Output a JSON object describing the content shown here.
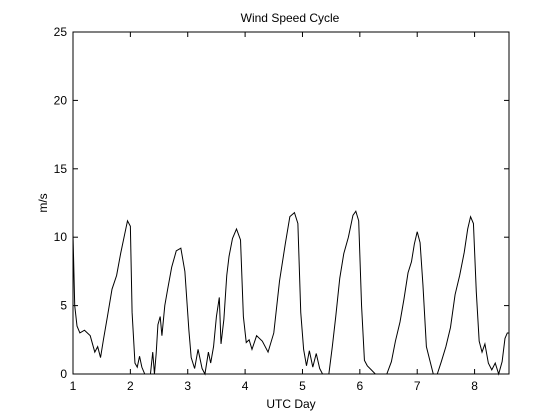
{
  "chart_data": {
    "type": "line",
    "title": "Wind Speed Cycle",
    "xlabel": "UTC Day",
    "ylabel": "m/s",
    "xlim": [
      1,
      8.6
    ],
    "ylim": [
      0,
      25
    ],
    "xticks": [
      1,
      2,
      3,
      4,
      5,
      6,
      7,
      8
    ],
    "yticks": [
      0,
      5,
      10,
      15,
      20,
      25
    ],
    "grid": false,
    "series": [
      {
        "color": "#000000",
        "x": [
          1.0,
          1.03,
          1.07,
          1.12,
          1.2,
          1.3,
          1.38,
          1.43,
          1.48,
          1.53,
          1.6,
          1.68,
          1.76,
          1.83,
          1.9,
          1.95,
          2.0,
          2.03,
          2.08,
          2.12,
          2.16,
          2.2,
          2.25,
          2.3,
          2.35,
          2.39,
          2.42,
          2.45,
          2.48,
          2.52,
          2.55,
          2.6,
          2.65,
          2.72,
          2.8,
          2.88,
          2.95,
          3.02,
          3.06,
          3.12,
          3.18,
          3.25,
          3.3,
          3.36,
          3.4,
          3.45,
          3.5,
          3.55,
          3.58,
          3.63,
          3.68,
          3.72,
          3.78,
          3.85,
          3.92,
          3.97,
          4.02,
          4.07,
          4.12,
          4.2,
          4.3,
          4.4,
          4.5,
          4.6,
          4.7,
          4.78,
          4.86,
          4.92,
          4.97,
          5.02,
          5.07,
          5.12,
          5.18,
          5.24,
          5.3,
          5.35,
          5.4,
          5.46,
          5.52,
          5.58,
          5.65,
          5.72,
          5.8,
          5.88,
          5.93,
          5.98,
          6.03,
          6.08,
          6.13,
          6.2,
          6.27,
          6.33,
          6.4,
          6.47,
          6.55,
          6.62,
          6.7,
          6.77,
          6.84,
          6.9,
          6.95,
          7.0,
          7.05,
          7.1,
          7.16,
          7.22,
          7.28,
          7.35,
          7.42,
          7.5,
          7.58,
          7.66,
          7.74,
          7.82,
          7.88,
          7.93,
          7.98,
          8.03,
          8.08,
          8.13,
          8.18,
          8.24,
          8.3,
          8.36,
          8.42,
          8.48,
          8.53,
          8.57,
          8.6
        ],
        "y": [
          10.2,
          5.0,
          3.5,
          3.0,
          3.2,
          2.8,
          1.6,
          2.0,
          1.2,
          2.5,
          4.2,
          6.2,
          7.2,
          8.8,
          10.2,
          11.2,
          10.8,
          4.5,
          0.8,
          0.5,
          1.3,
          0.5,
          0.0,
          0.0,
          0.0,
          1.6,
          0.0,
          1.5,
          3.6,
          4.2,
          2.8,
          5.0,
          6.2,
          7.8,
          9.0,
          9.2,
          7.5,
          3.2,
          1.2,
          0.4,
          1.8,
          0.4,
          0.0,
          1.6,
          0.8,
          2.0,
          4.2,
          5.6,
          2.2,
          4.0,
          7.2,
          8.6,
          9.9,
          10.6,
          9.8,
          4.2,
          2.3,
          2.5,
          1.8,
          2.8,
          2.4,
          1.6,
          3.0,
          6.8,
          9.5,
          11.5,
          11.8,
          11.0,
          4.5,
          1.8,
          0.6,
          1.7,
          0.5,
          1.5,
          0.4,
          0.0,
          0.0,
          0.0,
          2.0,
          4.2,
          7.0,
          8.8,
          10.0,
          11.6,
          11.9,
          11.2,
          5.0,
          1.0,
          0.6,
          0.3,
          0.0,
          0.0,
          0.0,
          0.0,
          0.9,
          2.4,
          3.8,
          5.5,
          7.4,
          8.2,
          9.5,
          10.4,
          9.6,
          6.5,
          2.0,
          1.0,
          0.0,
          0.0,
          0.9,
          2.0,
          3.4,
          5.8,
          7.2,
          8.9,
          10.6,
          11.5,
          11.0,
          6.0,
          2.4,
          1.6,
          2.2,
          0.8,
          0.3,
          0.8,
          0.0,
          0.9,
          2.6,
          3.0,
          3.0
        ]
      }
    ]
  }
}
